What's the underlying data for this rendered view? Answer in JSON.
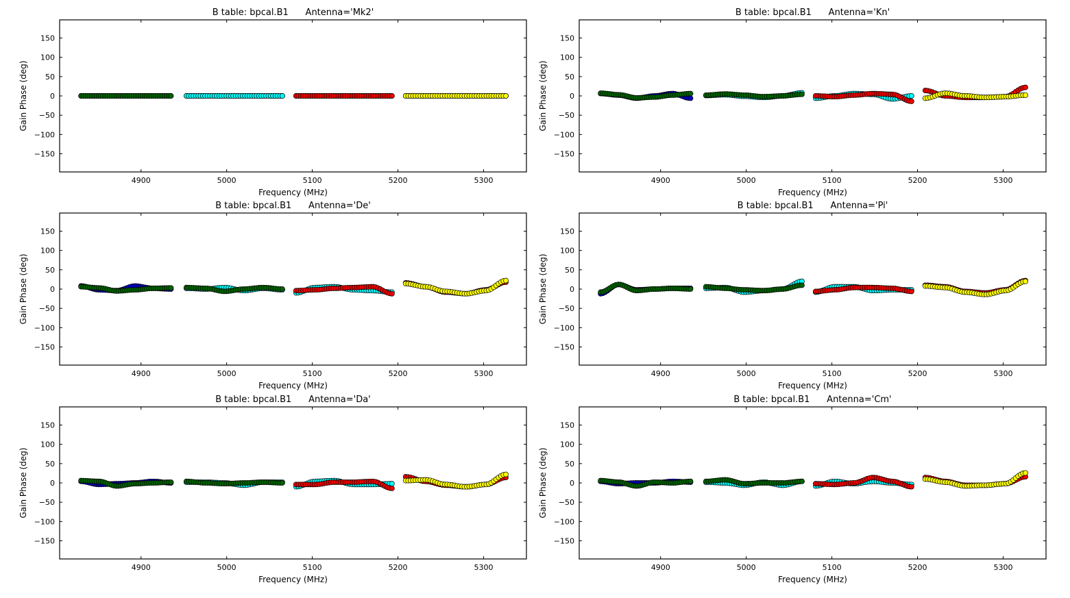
{
  "figure": {
    "background": "#ffffff"
  },
  "colors": {
    "blue": "#0000cc",
    "green": "#006400",
    "cyan": "#00ffff",
    "red": "#ee0000",
    "yellow": "#ffff00"
  },
  "chart_data": [
    {
      "type": "scatter",
      "title": "B table: bpcal.B1      Antenna='Mk2'",
      "xlabel": "Frequency (MHz)",
      "ylabel": "Gain Phase (deg)",
      "xlim": [
        4805,
        5350
      ],
      "ylim": [
        -197,
        197
      ],
      "xticks": [
        4900,
        5000,
        5100,
        5200,
        5300
      ],
      "yticks": [
        150,
        100,
        50,
        0,
        -50,
        -100,
        -150
      ],
      "windows": [
        {
          "x0": 4830,
          "x1": 4935,
          "series": [
            {
              "color": "blue",
              "ctrl": [
                0,
                0,
                0,
                0,
                0,
                0
              ]
            },
            {
              "color": "green",
              "ctrl": [
                0,
                0,
                0,
                0,
                0,
                0
              ]
            }
          ]
        },
        {
          "x0": 4953,
          "x1": 5065,
          "series": [
            {
              "color": "cyan",
              "ctrl": [
                0,
                0,
                0,
                0,
                0,
                0
              ]
            },
            {
              "color": "cyan",
              "ctrl": [
                0,
                0,
                0,
                0,
                0,
                0
              ]
            }
          ]
        },
        {
          "x0": 5081,
          "x1": 5193,
          "series": [
            {
              "color": "red",
              "ctrl": [
                0,
                0,
                0,
                0,
                0,
                0
              ]
            },
            {
              "color": "red",
              "ctrl": [
                0,
                0,
                0,
                0,
                0,
                0
              ]
            }
          ]
        },
        {
          "x0": 5209,
          "x1": 5326,
          "series": [
            {
              "color": "yellow",
              "ctrl": [
                0,
                0,
                0,
                0,
                0,
                0
              ]
            },
            {
              "color": "yellow",
              "ctrl": [
                0,
                0,
                0,
                0,
                0,
                0
              ]
            }
          ]
        }
      ]
    },
    {
      "type": "scatter",
      "title": "B table: bpcal.B1      Antenna='Kn'",
      "xlabel": "Frequency (MHz)",
      "ylabel": "Gain Phase (deg)",
      "xlim": [
        4805,
        5350
      ],
      "ylim": [
        -197,
        197
      ],
      "xticks": [
        4900,
        5000,
        5100,
        5200,
        5300
      ],
      "yticks": [
        150,
        100,
        50,
        0,
        -50,
        -100,
        -150
      ],
      "windows": [
        {
          "x0": 4830,
          "x1": 4935,
          "series": [
            {
              "color": "blue",
              "ctrl": [
                6,
                2,
                -6,
                0,
                6,
                -6
              ]
            },
            {
              "color": "green",
              "ctrl": [
                7,
                3,
                -5,
                -3,
                2,
                6
              ]
            }
          ]
        },
        {
          "x0": 4953,
          "x1": 5065,
          "series": [
            {
              "color": "cyan",
              "ctrl": [
                1,
                3,
                -1,
                -4,
                0,
                8
              ]
            },
            {
              "color": "green",
              "ctrl": [
                2,
                5,
                2,
                -2,
                0,
                4
              ]
            }
          ]
        },
        {
          "x0": 5081,
          "x1": 5193,
          "series": [
            {
              "color": "cyan",
              "ctrl": [
                -6,
                0,
                6,
                4,
                -8,
                0
              ]
            },
            {
              "color": "red",
              "ctrl": [
                0,
                -2,
                2,
                6,
                4,
                -14
              ]
            }
          ]
        },
        {
          "x0": 5209,
          "x1": 5326,
          "series": [
            {
              "color": "red",
              "ctrl": [
                14,
                0,
                -4,
                -4,
                -2,
                22
              ]
            },
            {
              "color": "yellow",
              "ctrl": [
                -6,
                7,
                0,
                -4,
                -2,
                2
              ]
            }
          ]
        }
      ]
    },
    {
      "type": "scatter",
      "title": "B table: bpcal.B1      Antenna='De'",
      "xlabel": "Frequency (MHz)",
      "ylabel": "Gain Phase (deg)",
      "xlim": [
        4805,
        5350
      ],
      "ylim": [
        -197,
        197
      ],
      "xticks": [
        4900,
        5000,
        5100,
        5200,
        5300
      ],
      "yticks": [
        150,
        100,
        50,
        0,
        -50,
        -100,
        -150
      ],
      "windows": [
        {
          "x0": 4830,
          "x1": 4935,
          "series": [
            {
              "color": "blue",
              "ctrl": [
                8,
                -2,
                -4,
                8,
                2,
                0
              ]
            },
            {
              "color": "green",
              "ctrl": [
                6,
                3,
                -5,
                -2,
                2,
                3
              ]
            }
          ]
        },
        {
          "x0": 4953,
          "x1": 5065,
          "series": [
            {
              "color": "cyan",
              "ctrl": [
                2,
                0,
                4,
                -4,
                2,
                -2
              ]
            },
            {
              "color": "green",
              "ctrl": [
                4,
                2,
                -6,
                0,
                4,
                0
              ]
            }
          ]
        },
        {
          "x0": 5081,
          "x1": 5193,
          "series": [
            {
              "color": "cyan",
              "ctrl": [
                -10,
                4,
                6,
                -2,
                -4,
                -8
              ]
            },
            {
              "color": "red",
              "ctrl": [
                -4,
                -2,
                2,
                4,
                6,
                -12
              ]
            }
          ]
        },
        {
          "x0": 5209,
          "x1": 5326,
          "series": [
            {
              "color": "red",
              "ctrl": [
                16,
                6,
                -8,
                -12,
                -2,
                18
              ]
            },
            {
              "color": "yellow",
              "ctrl": [
                14,
                6,
                -6,
                -12,
                -4,
                22
              ]
            }
          ]
        }
      ]
    },
    {
      "type": "scatter",
      "title": "B table: bpcal.B1      Antenna='Pi'",
      "xlabel": "Frequency (MHz)",
      "ylabel": "Gain Phase (deg)",
      "xlim": [
        4805,
        5350
      ],
      "ylim": [
        -197,
        197
      ],
      "xticks": [
        4900,
        5000,
        5100,
        5200,
        5300
      ],
      "yticks": [
        150,
        100,
        50,
        0,
        -50,
        -100,
        -150
      ],
      "windows": [
        {
          "x0": 4830,
          "x1": 4935,
          "series": [
            {
              "color": "blue",
              "ctrl": [
                -12,
                12,
                -2,
                0,
                2,
                2
              ]
            },
            {
              "color": "green",
              "ctrl": [
                -8,
                12,
                -4,
                0,
                2,
                0
              ]
            }
          ]
        },
        {
          "x0": 4953,
          "x1": 5065,
          "series": [
            {
              "color": "cyan",
              "ctrl": [
                2,
                4,
                -8,
                -4,
                0,
                20
              ]
            },
            {
              "color": "green",
              "ctrl": [
                6,
                2,
                -2,
                -4,
                0,
                10
              ]
            }
          ]
        },
        {
          "x0": 5081,
          "x1": 5193,
          "series": [
            {
              "color": "cyan",
              "ctrl": [
                -8,
                6,
                6,
                -4,
                -2,
                -2
              ]
            },
            {
              "color": "red",
              "ctrl": [
                -6,
                -2,
                4,
                4,
                2,
                -6
              ]
            }
          ]
        },
        {
          "x0": 5209,
          "x1": 5326,
          "series": [
            {
              "color": "red",
              "ctrl": [
                10,
                6,
                -6,
                -10,
                -2,
                22
              ]
            },
            {
              "color": "yellow",
              "ctrl": [
                8,
                4,
                -8,
                -14,
                -4,
                20
              ]
            }
          ]
        }
      ]
    },
    {
      "type": "scatter",
      "title": "B table: bpcal.B1      Antenna='Da'",
      "xlabel": "Frequency (MHz)",
      "ylabel": "Gain Phase (deg)",
      "xlim": [
        4805,
        5350
      ],
      "ylim": [
        -197,
        197
      ],
      "xticks": [
        4900,
        5000,
        5100,
        5200,
        5300
      ],
      "yticks": [
        150,
        100,
        50,
        0,
        -50,
        -100,
        -150
      ],
      "windows": [
        {
          "x0": 4830,
          "x1": 4935,
          "series": [
            {
              "color": "blue",
              "ctrl": [
                4,
                -4,
                -2,
                0,
                4,
                0
              ]
            },
            {
              "color": "green",
              "ctrl": [
                6,
                4,
                -8,
                -2,
                0,
                2
              ]
            }
          ]
        },
        {
          "x0": 4953,
          "x1": 5065,
          "series": [
            {
              "color": "cyan",
              "ctrl": [
                2,
                2,
                0,
                -6,
                2,
                2
              ]
            },
            {
              "color": "green",
              "ctrl": [
                4,
                0,
                -2,
                0,
                2,
                0
              ]
            }
          ]
        },
        {
          "x0": 5081,
          "x1": 5193,
          "series": [
            {
              "color": "cyan",
              "ctrl": [
                -10,
                4,
                6,
                -4,
                -4,
                -2
              ]
            },
            {
              "color": "red",
              "ctrl": [
                -4,
                -4,
                2,
                2,
                4,
                -14
              ]
            }
          ]
        },
        {
          "x0": 5209,
          "x1": 5326,
          "series": [
            {
              "color": "red",
              "ctrl": [
                16,
                4,
                -6,
                -10,
                -4,
                14
              ]
            },
            {
              "color": "yellow",
              "ctrl": [
                6,
                8,
                -4,
                -10,
                -4,
                22
              ]
            }
          ]
        }
      ]
    },
    {
      "type": "scatter",
      "title": "B table: bpcal.B1      Antenna='Cm'",
      "xlabel": "Frequency (MHz)",
      "ylabel": "Gain Phase (deg)",
      "xlim": [
        4805,
        5350
      ],
      "ylim": [
        -197,
        197
      ],
      "xticks": [
        4900,
        5000,
        5100,
        5200,
        5300
      ],
      "yticks": [
        150,
        100,
        50,
        0,
        -50,
        -100,
        -150
      ],
      "windows": [
        {
          "x0": 4830,
          "x1": 4935,
          "series": [
            {
              "color": "blue",
              "ctrl": [
                4,
                -2,
                0,
                0,
                4,
                2
              ]
            },
            {
              "color": "green",
              "ctrl": [
                6,
                2,
                -8,
                2,
                0,
                4
              ]
            }
          ]
        },
        {
          "x0": 4953,
          "x1": 5065,
          "series": [
            {
              "color": "cyan",
              "ctrl": [
                2,
                0,
                -6,
                2,
                -6,
                4
              ]
            },
            {
              "color": "green",
              "ctrl": [
                4,
                8,
                -2,
                0,
                0,
                4
              ]
            }
          ]
        },
        {
          "x0": 5081,
          "x1": 5193,
          "series": [
            {
              "color": "cyan",
              "ctrl": [
                -8,
                4,
                -2,
                4,
                0,
                -4
              ]
            },
            {
              "color": "red",
              "ctrl": [
                -2,
                -4,
                0,
                14,
                4,
                -10
              ]
            }
          ]
        },
        {
          "x0": 5209,
          "x1": 5326,
          "series": [
            {
              "color": "red",
              "ctrl": [
                14,
                4,
                -6,
                -6,
                -2,
                16
              ]
            },
            {
              "color": "yellow",
              "ctrl": [
                10,
                2,
                -8,
                -6,
                -2,
                26
              ]
            }
          ]
        }
      ]
    }
  ]
}
